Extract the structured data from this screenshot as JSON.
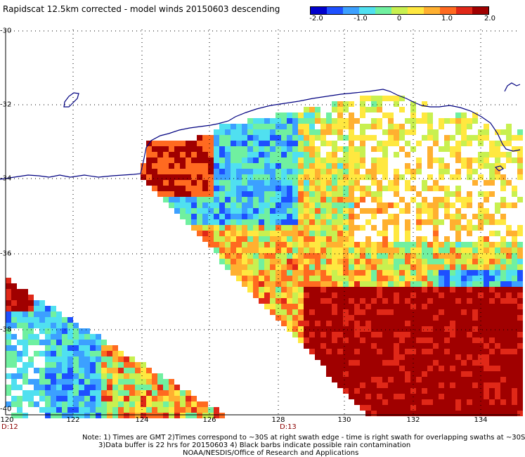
{
  "title": "Rapidscat 12.5km corrected - model winds 20150603 descending",
  "colorbar": {
    "ticks": [
      "-2.0",
      "-1.0",
      "0",
      "1.0",
      "2.0"
    ],
    "range": [
      -2.0,
      2.0
    ],
    "colors": [
      "#0000cd",
      "#1e50ff",
      "#3ca0ff",
      "#50e0f0",
      "#70f0a0",
      "#c8f050",
      "#ffe840",
      "#ffb030",
      "#ff6a20",
      "#e02818",
      "#a00000"
    ]
  },
  "map": {
    "lat_labels": [
      "-30",
      "-32",
      "-34",
      "-36",
      "-38",
      "-40"
    ],
    "lon_labels": [
      "120",
      "122",
      "124",
      "126",
      "128",
      "130",
      "132",
      "134"
    ],
    "time_labels": [
      "D:12",
      "D:13"
    ],
    "lat_range": [
      -40,
      -30
    ],
    "lon_range": [
      120,
      134.8
    ],
    "gridlines": true,
    "coastline_color": "#000080",
    "land": "Australia (southern coast)"
  },
  "footer": {
    "note_line1": "Note: 1) Times are GMT 2)Times correspond to ~30S at right swath edge - time is right swath for overlapping swaths at ~30S",
    "note_line2": "3)Data buffer is 22 hrs for 20150603 4) Black barbs indicate possible rain contamination",
    "credit": "NOAA/NESDIS/Office of Research and Applications"
  }
}
